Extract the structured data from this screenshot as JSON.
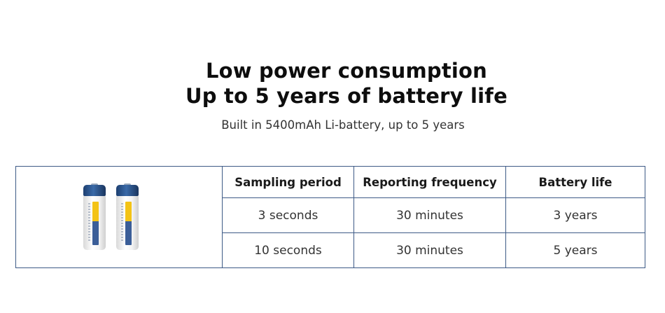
{
  "heading": {
    "line1": "Low power consumption",
    "line2": "Up to 5 years of battery life"
  },
  "subtitle": "Built in 5400mAh Li-battery, up to 5 years",
  "table": {
    "headers": [
      "Sampling period",
      "Reporting frequency",
      "Battery life"
    ],
    "rows": [
      [
        "3 seconds",
        "30 minutes",
        "3 years"
      ],
      [
        "10 seconds",
        "30 minutes",
        "5 years"
      ]
    ]
  },
  "colors": {
    "table_border": "#3d5a86",
    "battery_cap": "#2c5590",
    "battery_label_yellow": "#f3c316",
    "battery_label_blue": "#3b5e98"
  }
}
